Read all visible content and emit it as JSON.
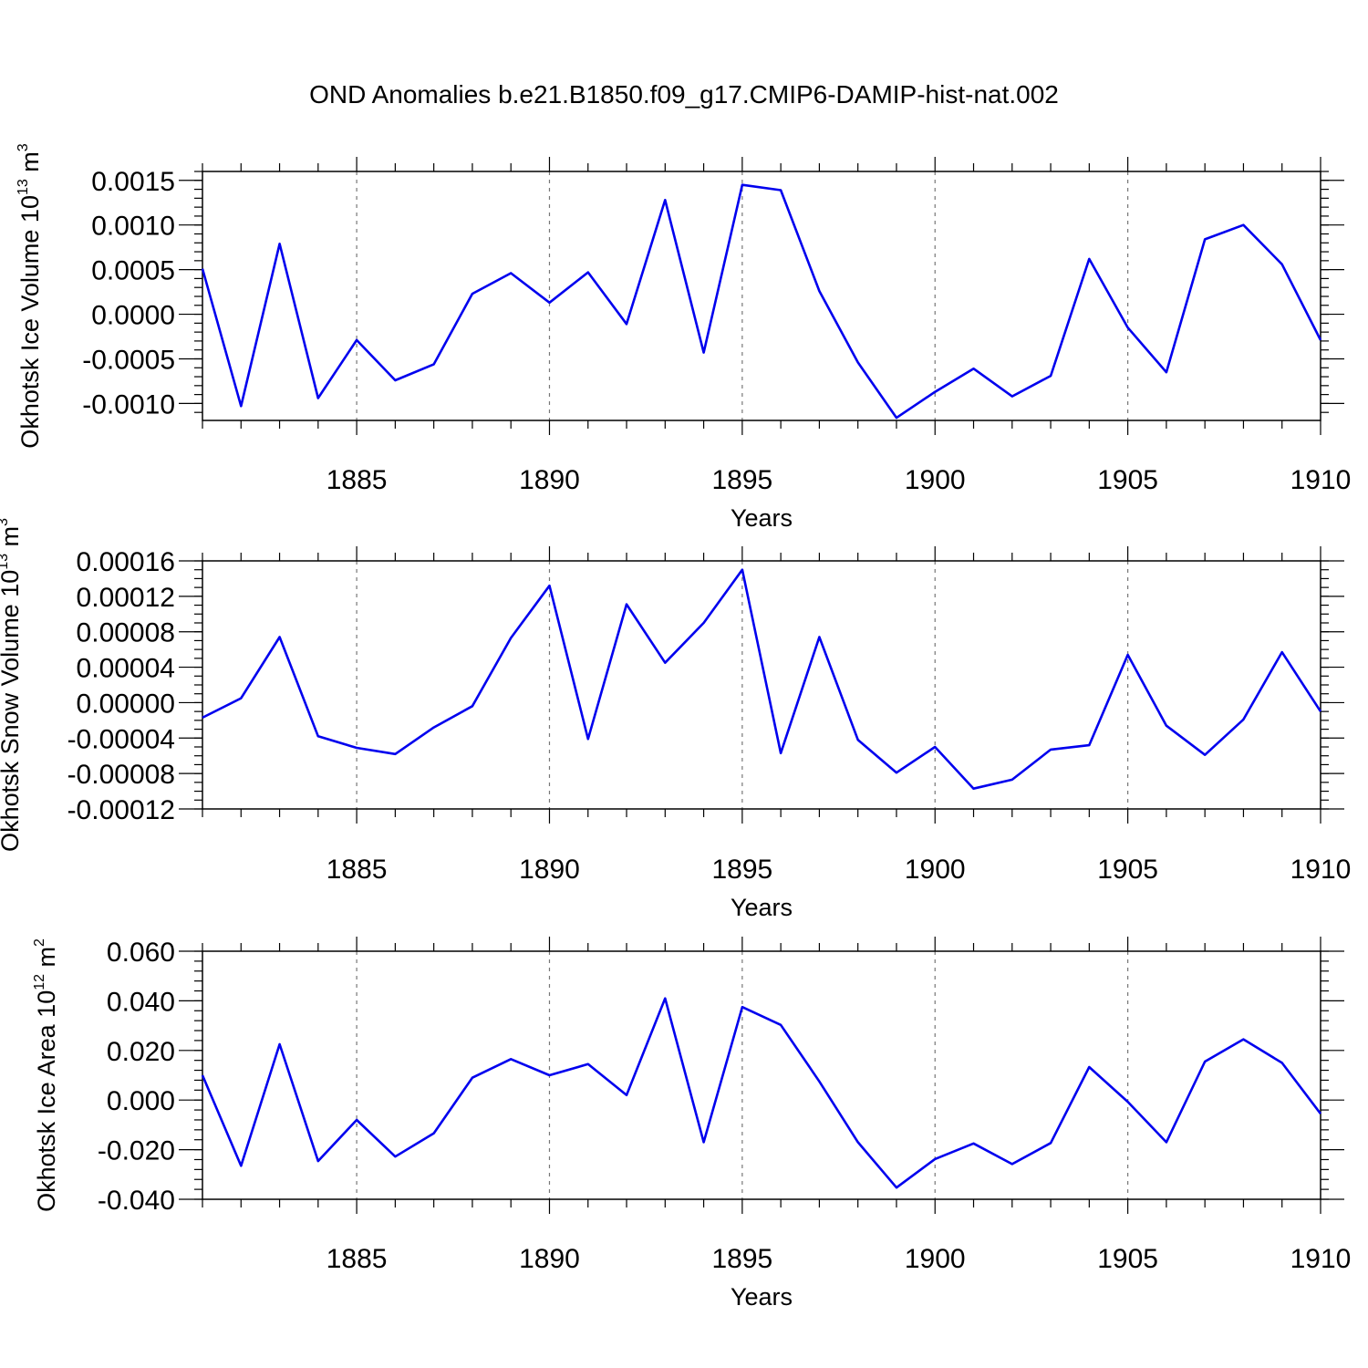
{
  "chart_data": [
    {
      "type": "line",
      "title": "OND Anomalies b.e21.B1850.f09_g17.CMIP6-DAMIP-hist-nat.002",
      "xlabel": "Years",
      "ylabel": "Okhotsk Ice Volume 10",
      "ylabel_sup": "13",
      "ylabel_unit": "m",
      "ylabel_unit_sup": "3",
      "x": [
        1881,
        1882,
        1883,
        1884,
        1885,
        1886,
        1887,
        1888,
        1889,
        1890,
        1891,
        1892,
        1893,
        1894,
        1895,
        1896,
        1897,
        1898,
        1899,
        1900,
        1901,
        1902,
        1903,
        1904,
        1905,
        1906,
        1907,
        1908,
        1909,
        1910
      ],
      "values": [
        0.00051,
        -0.00103,
        0.00079,
        -0.00094,
        -0.00029,
        -0.00074,
        -0.00056,
        0.00023,
        0.00046,
        0.00013,
        0.00047,
        -0.00011,
        0.00128,
        -0.00043,
        0.00145,
        0.00139,
        0.00026,
        -0.00054,
        -0.00116,
        -0.00087,
        -0.00061,
        -0.00092,
        -0.00069,
        0.00062,
        -0.00015,
        -0.00065,
        0.00084,
        0.001,
        0.00056,
        -0.00029
      ],
      "xlim": [
        1881,
        1910
      ],
      "ylim": [
        -0.00119,
        0.0016
      ],
      "xticks": [
        1885,
        1890,
        1895,
        1900,
        1905,
        1910
      ],
      "xtick_labels": [
        "1885",
        "1890",
        "1895",
        "1900",
        "1905",
        "1910"
      ],
      "yticks": [
        0.0015,
        0.001,
        0.0005,
        0,
        -0.0005,
        -0.001
      ],
      "ytick_labels": [
        "0.0015",
        "0.0010",
        "0.0005",
        "0.0000",
        "-0.0005",
        "-0.0010"
      ],
      "minor_ystep": 0.0001,
      "grid": "vertical dashed at major x ticks",
      "color": "#0000ee"
    },
    {
      "type": "line",
      "xlabel": "Years",
      "ylabel": "Okhotsk Snow Volume 10",
      "ylabel_sup": "13",
      "ylabel_unit": "m",
      "ylabel_unit_sup": "3",
      "x": [
        1881,
        1882,
        1883,
        1884,
        1885,
        1886,
        1887,
        1888,
        1889,
        1890,
        1891,
        1892,
        1893,
        1894,
        1895,
        1896,
        1897,
        1898,
        1899,
        1900,
        1901,
        1902,
        1903,
        1904,
        1905,
        1906,
        1907,
        1908,
        1909,
        1910
      ],
      "values": [
        -1.7e-05,
        5e-06,
        7.4e-05,
        -3.8e-05,
        -5.1e-05,
        -5.8e-05,
        -2.8e-05,
        -4e-06,
        7.3e-05,
        0.000132,
        -4.1e-05,
        0.000111,
        4.5e-05,
        9e-05,
        0.00015,
        -5.7e-05,
        7.4e-05,
        -4.2e-05,
        -7.9e-05,
        -5e-05,
        -9.7e-05,
        -8.7e-05,
        -5.3e-05,
        -4.8e-05,
        5.4e-05,
        -2.6e-05,
        -5.9e-05,
        -1.9e-05,
        5.7e-05,
        -1e-05
      ],
      "xlim": [
        1881,
        1910
      ],
      "ylim": [
        -0.00012,
        0.00016
      ],
      "xticks": [
        1885,
        1890,
        1895,
        1900,
        1905,
        1910
      ],
      "xtick_labels": [
        "1885",
        "1890",
        "1895",
        "1900",
        "1905",
        "1910"
      ],
      "yticks": [
        0.00016,
        0.00012,
        8e-05,
        4e-05,
        0,
        -4e-05,
        -8e-05,
        -0.00012
      ],
      "ytick_labels": [
        "0.00016",
        "0.00012",
        "0.00008",
        "0.00004",
        "0.00000",
        "-0.00004",
        "-0.00008",
        "-0.00012"
      ],
      "minor_ystep": 1e-05,
      "grid": "vertical dashed at major x ticks",
      "color": "#0000ee"
    },
    {
      "type": "line",
      "xlabel": "Years",
      "ylabel": "Okhotsk Ice Area 10",
      "ylabel_sup": "12",
      "ylabel_unit": "m",
      "ylabel_unit_sup": "2",
      "x": [
        1881,
        1882,
        1883,
        1884,
        1885,
        1886,
        1887,
        1888,
        1889,
        1890,
        1891,
        1892,
        1893,
        1894,
        1895,
        1896,
        1897,
        1898,
        1899,
        1900,
        1901,
        1902,
        1903,
        1904,
        1905,
        1906,
        1907,
        1908,
        1909,
        1910
      ],
      "values": [
        0.01,
        -0.0265,
        0.0225,
        -0.0246,
        -0.008,
        -0.0228,
        -0.0134,
        0.009,
        0.0165,
        0.01,
        0.0145,
        0.002,
        0.041,
        -0.017,
        0.0375,
        0.0303,
        0.0075,
        -0.017,
        -0.0353,
        -0.0238,
        -0.0175,
        -0.0258,
        -0.0173,
        0.0133,
        -0.0007,
        -0.017,
        0.0155,
        0.0245,
        0.015,
        -0.0055
      ],
      "xlim": [
        1881,
        1910
      ],
      "ylim": [
        -0.04,
        0.06
      ],
      "xticks": [
        1885,
        1890,
        1895,
        1900,
        1905,
        1910
      ],
      "xtick_labels": [
        "1885",
        "1890",
        "1895",
        "1900",
        "1905",
        "1910"
      ],
      "yticks": [
        0.06,
        0.04,
        0.02,
        0,
        -0.02,
        -0.04
      ],
      "ytick_labels": [
        "0.060",
        "0.040",
        "0.020",
        "0.000",
        "-0.020",
        "-0.040"
      ],
      "minor_ystep": 0.004,
      "grid": "vertical dashed at major x ticks",
      "color": "#0000ee"
    }
  ]
}
